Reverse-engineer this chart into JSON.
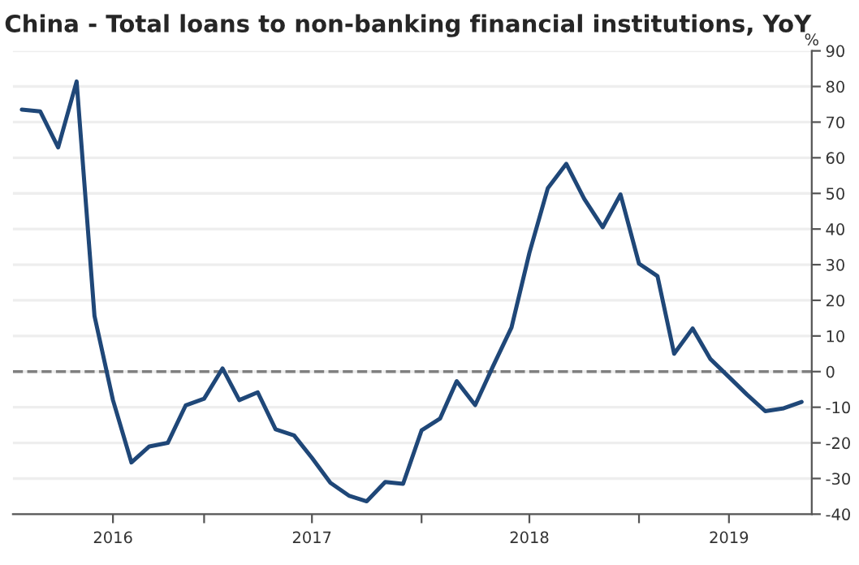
{
  "chart_data": {
    "type": "line",
    "title": "China - Total loans to non-banking financial institutions, YoY",
    "ylabel": "%",
    "x": [
      "2016-03",
      "2016-04",
      "2016-05",
      "2016-06",
      "2016-07",
      "2016-08",
      "2016-09",
      "2016-10",
      "2016-11",
      "2016-12",
      "2017-01",
      "2017-02",
      "2017-03",
      "2017-04",
      "2017-05",
      "2017-06",
      "2017-07",
      "2017-08",
      "2017-09",
      "2017-10",
      "2017-11",
      "2017-12",
      "2018-01",
      "2018-02",
      "2018-03",
      "2018-04",
      "2018-05",
      "2018-06",
      "2018-07",
      "2018-08",
      "2018-09",
      "2018-10",
      "2018-11",
      "2018-12",
      "2019-01",
      "2019-02",
      "2019-03",
      "2019-04",
      "2019-05",
      "2019-06",
      "2019-07",
      "2019-08",
      "2019-09",
      "2019-10"
    ],
    "series": [
      {
        "color": "#1f4778",
        "values": [
          73.5,
          73,
          62.9,
          81.4,
          15.6,
          -8,
          -25.5,
          -21,
          -20,
          -9.5,
          -7.6,
          0.9,
          -8,
          -5.8,
          -16.2,
          -17.9,
          -24.2,
          -31.2,
          -34.8,
          -36.4,
          -31,
          -31.5,
          -16.5,
          -13.2,
          -2.7,
          -9.4,
          1.5,
          12.4,
          33.3,
          51.5,
          58.3,
          48.5,
          40.5,
          49.7,
          30.3,
          26.8,
          5,
          12.1,
          3.5,
          -1.5,
          -6.4,
          -11.1,
          -10.3,
          -8.5
        ]
      }
    ],
    "xlim": [
      "2016-02-15",
      "2019-10-18"
    ],
    "xticks": [
      {
        "value": "2016-08-01",
        "label": "2016"
      },
      {
        "value": "2017-01-01",
        "label": null
      },
      {
        "value": "2017-07-01",
        "label": "2017"
      },
      {
        "value": "2018-01-01",
        "label": null
      },
      {
        "value": "2018-07-01",
        "label": "2018"
      },
      {
        "value": "2019-01-01",
        "label": null
      },
      {
        "value": "2019-06-01",
        "label": "2019"
      }
    ],
    "ylim": [
      -40,
      90
    ],
    "yticks": [
      -40,
      -30,
      -20,
      -10,
      0,
      10,
      20,
      30,
      40,
      50,
      60,
      70,
      80,
      90
    ],
    "ref_lines": [
      {
        "axis": "y",
        "value": 0,
        "color": "#808080",
        "line_style": "dashed"
      }
    ],
    "grid": "y",
    "legend": false,
    "marker": "none",
    "line_style": "solid"
  }
}
